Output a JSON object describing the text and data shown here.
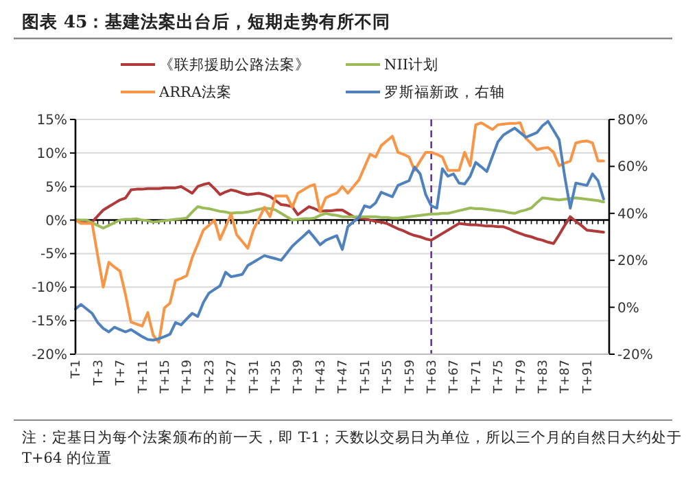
{
  "chart_data": {
    "type": "line",
    "title": "图表 45：基建法案出台后，短期走势有所不同",
    "annotations": [
      "注：定基日为每个法案颁布的前一天，即 T-1；天数以交易日为单位，所以三个月的自然日大约处于 T+64 的位置"
    ],
    "categories": [
      "T-1",
      null,
      null,
      null,
      "T+3",
      null,
      null,
      null,
      "T+7",
      null,
      null,
      null,
      "T+11",
      null,
      null,
      null,
      "T+15",
      null,
      null,
      null,
      "T+19",
      null,
      null,
      null,
      "T+23",
      null,
      null,
      null,
      "T+27",
      null,
      null,
      null,
      "T+31",
      null,
      null,
      null,
      "T+35",
      null,
      null,
      null,
      "T+39",
      null,
      null,
      null,
      "T+43",
      null,
      null,
      null,
      "T+47",
      null,
      null,
      null,
      "T+51",
      null,
      null,
      null,
      "T+55",
      null,
      null,
      null,
      "T+59",
      null,
      null,
      null,
      "T+63",
      null,
      null,
      null,
      "T+67",
      null,
      null,
      null,
      "T+71",
      null,
      null,
      null,
      "T+75",
      null,
      null,
      null,
      "T+79",
      null,
      null,
      null,
      "T+83",
      null,
      null,
      null,
      "T+87",
      null,
      null,
      null,
      "T+91",
      null,
      null,
      null
    ],
    "ylim": [
      -20,
      15
    ],
    "yticks": [
      {
        "value": -20,
        "label": "-20%"
      },
      {
        "value": -15,
        "label": "-15%"
      },
      {
        "value": -10,
        "label": "-10%"
      },
      {
        "value": -5,
        "label": "-5%"
      },
      {
        "value": 0,
        "label": "0%"
      },
      {
        "value": 5,
        "label": "5%"
      },
      {
        "value": 10,
        "label": "10%"
      },
      {
        "value": 15,
        "label": "15%"
      }
    ],
    "y2lim": [
      -20,
      80
    ],
    "y2ticks": [
      {
        "value": -20,
        "label": "-20%"
      },
      {
        "value": 0,
        "label": "0%"
      },
      {
        "value": 20,
        "label": "20%"
      },
      {
        "value": 40,
        "label": "40%"
      },
      {
        "value": 60,
        "label": "60%"
      },
      {
        "value": 80,
        "label": "80%"
      }
    ],
    "grid": "y",
    "legend": "top",
    "line_style": "solid",
    "ref_lines": [
      {
        "axis": "x",
        "value": "T+63",
        "color": "#7030a0",
        "line_style": "dashed"
      }
    ],
    "series": [
      {
        "name": "《联邦援助公路法案》",
        "color": "#b03a3a",
        "values": [
          0,
          -0.1,
          -0.2,
          -0.3,
          0.6,
          1.5,
          2,
          2.5,
          3,
          3.3,
          4.5,
          4.6,
          4.6,
          4.7,
          4.7,
          4.7,
          4.8,
          4.8,
          4.8,
          5,
          4.5,
          4,
          5,
          5.3,
          5.5,
          4.7,
          3.8,
          4.2,
          4.5,
          4.3,
          4,
          3.8,
          3.9,
          4,
          3.8,
          3.5,
          2.9,
          2.3,
          2.2,
          2,
          0.8,
          1.4,
          2,
          1.7,
          1.3,
          1.4,
          1.4,
          1.5,
          1.5,
          1,
          0.5,
          0.3,
          0.2,
          0,
          -0.2,
          -0.3,
          -0.5,
          -0.9,
          -1.3,
          -1.6,
          -2,
          -2.3,
          -2.5,
          -2.8,
          -3,
          -2.5,
          -2,
          -1.5,
          -1,
          -0.5,
          -0.6,
          -0.7,
          -0.7,
          -0.8,
          -0.9,
          -0.9,
          -1,
          -1,
          -1.3,
          -1.7,
          -2,
          -2.3,
          -2.5,
          -2.8,
          -3,
          -3.3,
          -3.5,
          -2.2,
          -0.8,
          0.5,
          -0.2,
          -0.8,
          -1.5,
          -1.6,
          -1.7,
          -1.8
        ]
      },
      {
        "name": "NII计划",
        "color": "#9bbb59",
        "values": [
          0,
          0,
          0,
          -0.4,
          -0.8,
          -1.2,
          -0.8,
          -0.4,
          0,
          0.1,
          0.1,
          0.2,
          0,
          -0.1,
          -0.3,
          -0.2,
          -0.1,
          0,
          0.1,
          0.2,
          0.3,
          1.2,
          2,
          1.8,
          1.7,
          1.5,
          1.3,
          1.2,
          1,
          1.1,
          1.1,
          1.2,
          1.4,
          1.6,
          1.8,
          1.7,
          1.5,
          1,
          0.5,
          0,
          0.1,
          0.2,
          0.2,
          0.3,
          0.7,
          1,
          0.8,
          0.7,
          0.5,
          0.5,
          0.5,
          0.5,
          0.5,
          0.5,
          0.5,
          0.4,
          0.4,
          0.3,
          0.3,
          0.4,
          0.5,
          0.6,
          0.7,
          0.8,
          0.9,
          0.9,
          1,
          1,
          1.2,
          1.4,
          1.6,
          1.8,
          1.7,
          1.7,
          1.6,
          1.5,
          1.4,
          1.3,
          1.1,
          1,
          1.3,
          1.5,
          1.8,
          2.6,
          3.3,
          3.2,
          3.1,
          3,
          3.1,
          3.2,
          3.3,
          3.2,
          3.1,
          3,
          2.9,
          2.7
        ]
      },
      {
        "name": "ARRA法案",
        "color": "#f79646",
        "values": [
          0,
          -0.5,
          -0.5,
          -0.5,
          -5.3,
          -10,
          -6.3,
          -7,
          -7.6,
          -11.1,
          -15.2,
          -15.5,
          -15.8,
          -13.8,
          -17.2,
          -18.2,
          -13.1,
          -12.4,
          -9,
          -8.7,
          -8.3,
          -5.6,
          -3.6,
          -1.5,
          -0.8,
          0,
          -2.9,
          -1,
          0.9,
          -2.2,
          -3.2,
          -4.2,
          -1.5,
          0.2,
          1.9,
          0.5,
          3.6,
          3.6,
          3.6,
          1.9,
          4,
          4.5,
          5,
          5.3,
          1.2,
          3.3,
          3.7,
          4,
          5,
          4,
          5,
          6,
          7.9,
          9.8,
          9.4,
          11.1,
          11.8,
          12.5,
          10.1,
          9.8,
          9.4,
          7.4,
          8.8,
          10.1,
          10.1,
          9.8,
          9.4,
          7.4,
          7.4,
          7.4,
          10.1,
          8.1,
          14.2,
          14.5,
          14,
          13.5,
          14.2,
          14.3,
          14.4,
          14.4,
          14.5,
          12.2,
          11.4,
          10.5,
          10.7,
          10.8,
          10.1,
          8.1,
          8.5,
          8.8,
          11.5,
          11.7,
          11.8,
          11.5,
          8.8,
          8.8
        ]
      },
      {
        "name": "罗斯福新政，右轴",
        "color": "#4f81bd",
        "axis": "y2",
        "values": [
          -0.7,
          1.2,
          -0.7,
          -2.6,
          -6.5,
          -9,
          -10.5,
          -8.5,
          -9.5,
          -10.5,
          -9.5,
          -11,
          -12.5,
          -13.7,
          -14,
          -13.4,
          -12.5,
          -11.5,
          -6.5,
          -7.5,
          -5,
          -2.6,
          -3.9,
          2,
          6,
          7.6,
          9.1,
          14.9,
          13,
          13.5,
          14,
          17.8,
          19.2,
          20.6,
          22,
          21.3,
          20.7,
          20,
          23,
          26,
          28.2,
          30.3,
          32.5,
          29.6,
          26.6,
          28.5,
          29.5,
          30.5,
          24.6,
          34.4,
          36.4,
          38.3,
          43.2,
          42.5,
          44.5,
          49,
          48,
          47.1,
          51.9,
          52.9,
          53.9,
          59.7,
          56.8,
          48,
          43.2,
          42.2,
          59,
          55.8,
          56.8,
          52.9,
          52.5,
          55.8,
          61.7,
          59.8,
          57.8,
          64.2,
          70.5,
          73.4,
          74.9,
          76.3,
          74.4,
          72.4,
          73.4,
          74.4,
          77.3,
          79.2,
          75.3,
          71.4,
          55.8,
          42.2,
          52.9,
          52.4,
          51.9,
          56.8,
          53.9,
          46.1
        ]
      }
    ]
  }
}
